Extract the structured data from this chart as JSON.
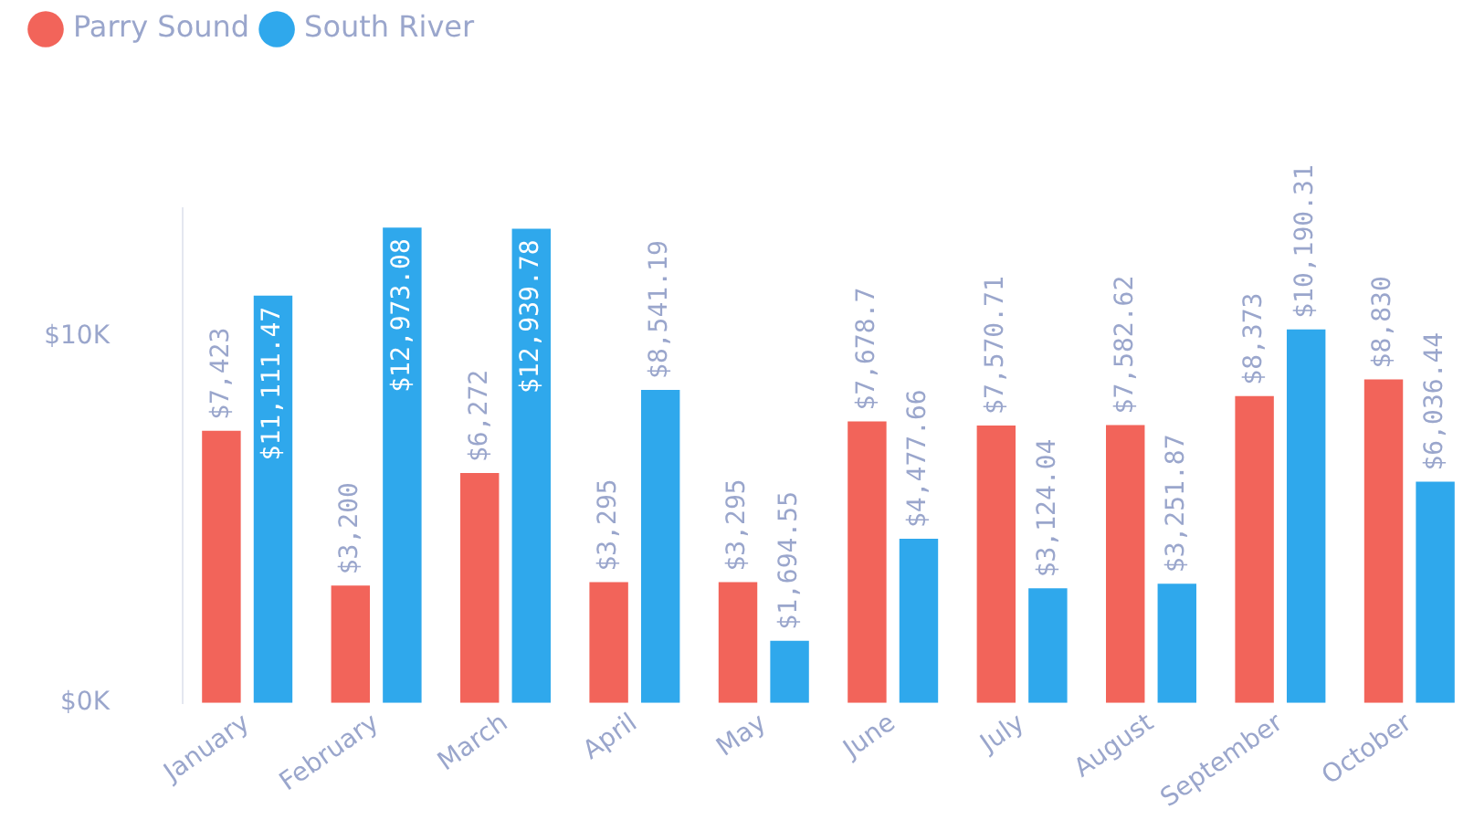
{
  "chart_data": {
    "type": "bar",
    "categories": [
      "January",
      "February",
      "March",
      "April",
      "May",
      "June",
      "July",
      "August",
      "September",
      "October"
    ],
    "series": [
      {
        "name": "Parry Sound",
        "color": "#f2645a",
        "values": [
          7423,
          3200,
          6272,
          3295,
          3295,
          7678.7,
          7570.71,
          7582.62,
          8373,
          8830
        ],
        "value_labels": [
          "$7,423",
          "$3,200",
          "$6,272",
          "$3,295",
          "$3,295",
          "$7,678.7",
          "$7,570.71",
          "$7,582.62",
          "$8,373",
          "$8,830"
        ]
      },
      {
        "name": "South River",
        "color": "#2fa8ec",
        "values": [
          11111.47,
          12973.08,
          12939.78,
          8541.19,
          1694.55,
          4477.66,
          3124.04,
          3251.87,
          10190.31,
          6036.44
        ],
        "value_labels": [
          "$11,111.47",
          "$12,973.08",
          "$12,939.78",
          "$8,541.19",
          "$1,694.55",
          "$4,477.66",
          "$3,124.04",
          "$3,251.87",
          "$10,190.31",
          "$6,036.44"
        ]
      }
    ],
    "ylim": [
      0,
      13500
    ],
    "yticks": [
      {
        "value": 0,
        "label": "$0K"
      },
      {
        "value": 10000,
        "label": "$10K"
      }
    ],
    "grid": false,
    "legend": "top left"
  }
}
